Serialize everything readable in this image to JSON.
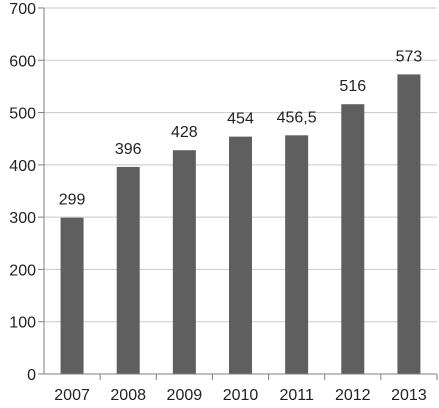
{
  "chart_data": {
    "type": "bar",
    "categories": [
      "2007",
      "2008",
      "2009",
      "2010",
      "2011",
      "2012",
      "2013"
    ],
    "values": [
      299,
      396,
      428,
      454,
      456.5,
      516,
      573
    ],
    "data_labels": [
      "299",
      "396",
      "428",
      "454",
      "456,5",
      "516",
      "573"
    ],
    "y_ticks": [
      0,
      100,
      200,
      300,
      400,
      500,
      600,
      700
    ],
    "ylim": [
      0,
      700
    ],
    "title": "",
    "xlabel": "",
    "ylabel": "",
    "grid": "horizontal",
    "legend": "none",
    "colors": {
      "bar": "#5f5f5f",
      "grid": "#c8c8c8",
      "axis": "#7f7f7f",
      "text": "#222222"
    }
  }
}
